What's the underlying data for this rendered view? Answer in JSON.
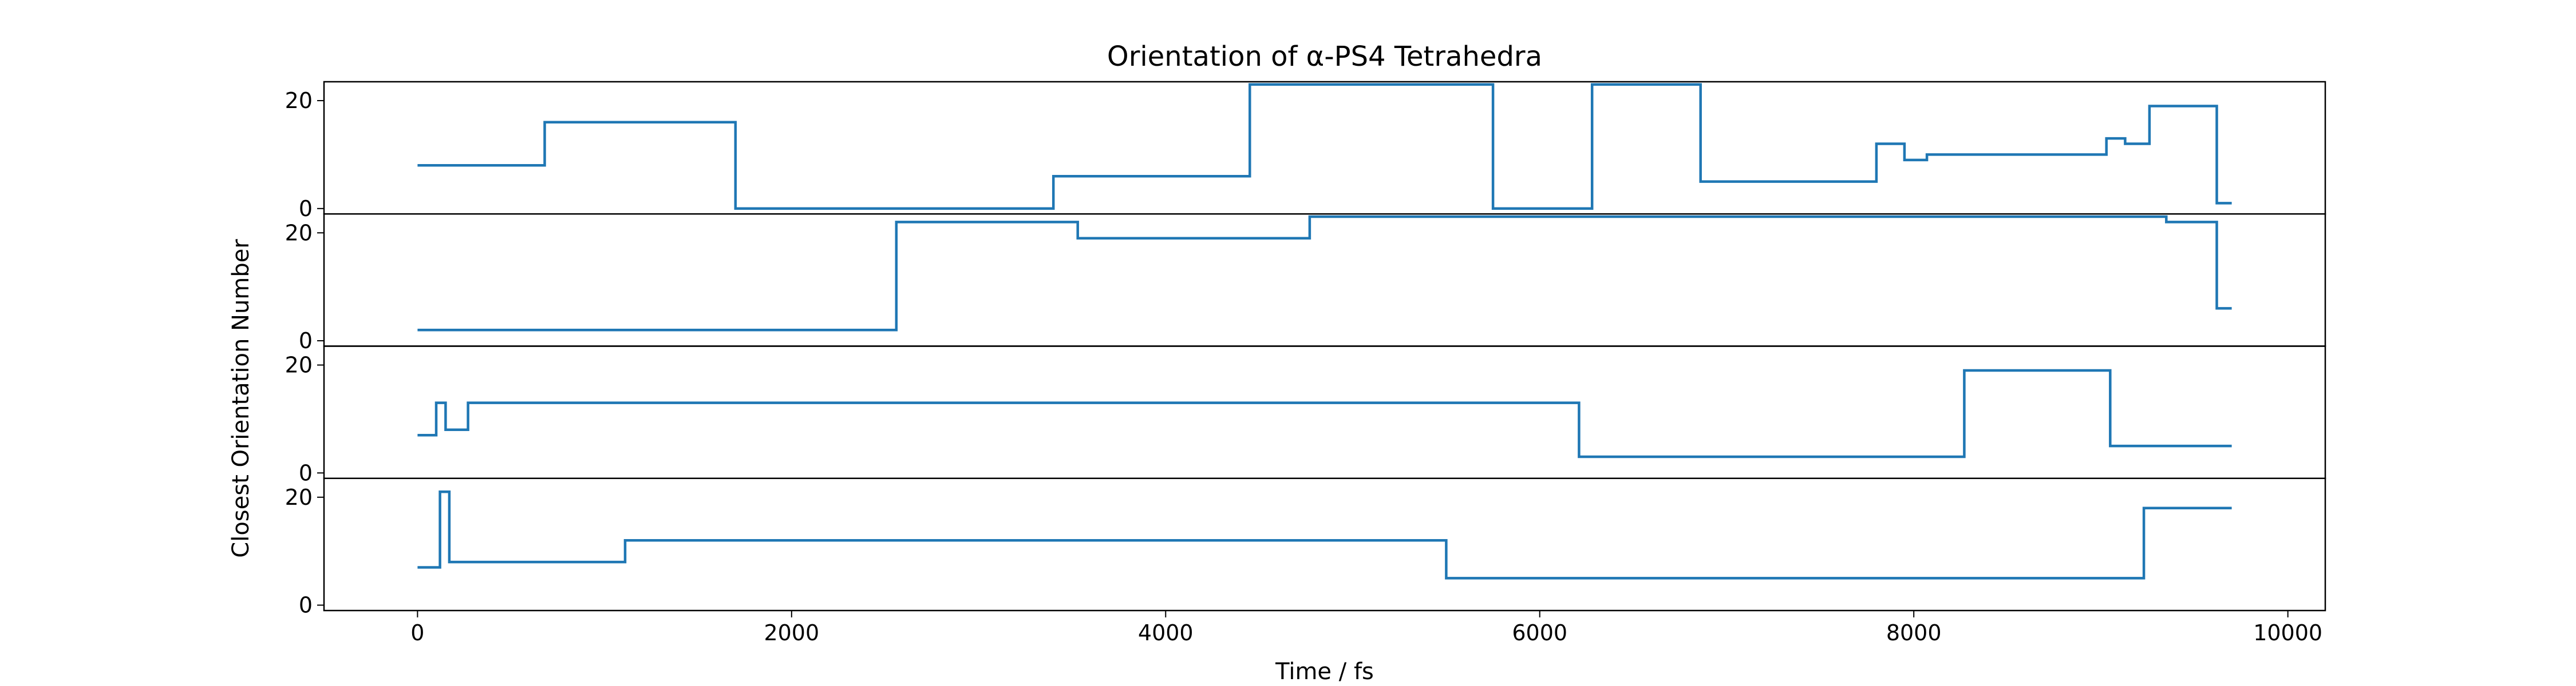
{
  "chart_data": {
    "type": "line",
    "style": "step",
    "title": "Orientation of α-PS4 Tetrahedra",
    "xlabel": "Time / fs",
    "ylabel": "Closest Orientation Number",
    "xlim": [
      -500,
      10200
    ],
    "ylim": [
      -1,
      23.5
    ],
    "xticks": [
      0,
      2000,
      4000,
      6000,
      8000,
      10000
    ],
    "yticks": [
      0,
      20
    ],
    "grid": false,
    "line_color": "#1f77b4",
    "panels": [
      {
        "x": [
          0,
          680,
          1700,
          3400,
          4450,
          5750,
          6280,
          6860,
          7800,
          7950,
          8070,
          9030,
          9130,
          9260,
          9620,
          9700
        ],
        "y": [
          8,
          16,
          0,
          6,
          23,
          0,
          23,
          5,
          12,
          9,
          10,
          13,
          12,
          19,
          1,
          1
        ]
      },
      {
        "x": [
          0,
          2560,
          3530,
          4770,
          9350,
          9620,
          9700
        ],
        "y": [
          2,
          22,
          19,
          23,
          22,
          6,
          6
        ]
      },
      {
        "x": [
          0,
          100,
          150,
          270,
          6210,
          8270,
          9050,
          9700
        ],
        "y": [
          7,
          13,
          8,
          13,
          3,
          19,
          5,
          5
        ]
      },
      {
        "x": [
          0,
          120,
          170,
          1110,
          5500,
          9230,
          9700
        ],
        "y": [
          7,
          21,
          8,
          12,
          5,
          18,
          18
        ]
      }
    ]
  }
}
